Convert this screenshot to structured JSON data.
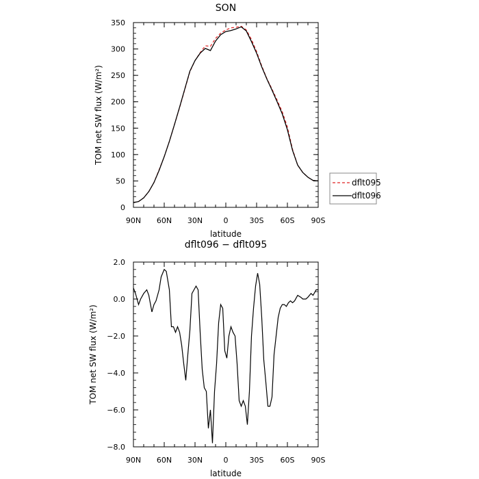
{
  "chart_data": [
    {
      "type": "line",
      "title": "SON",
      "xlabel": "latitude",
      "ylabel": "TOM net SW flux (W/m²)",
      "xlim": [
        90,
        -90
      ],
      "ylim": [
        0,
        350
      ],
      "xticks": [
        90,
        60,
        30,
        0,
        -30,
        -60,
        -90
      ],
      "xtick_labels": [
        "90N",
        "60N",
        "30N",
        "0",
        "30S",
        "60S",
        "90S"
      ],
      "yticks": [
        0,
        50,
        100,
        150,
        200,
        250,
        300,
        350
      ],
      "ytick_labels": [
        "0",
        "50",
        "100",
        "150",
        "200",
        "250",
        "300",
        "350"
      ],
      "grid": false,
      "legend": "right",
      "x": [
        90,
        85,
        80,
        75,
        70,
        65,
        60,
        55,
        50,
        45,
        40,
        35,
        30,
        25,
        20,
        15,
        10,
        5,
        0,
        -5,
        -10,
        -15,
        -20,
        -25,
        -30,
        -35,
        -40,
        -45,
        -50,
        -55,
        -60,
        -65,
        -70,
        -75,
        -80,
        -85,
        -90
      ],
      "series": [
        {
          "name": "dflt095",
          "color": "#e02020",
          "dash": "dashed",
          "values": [
            9,
            11,
            18,
            30,
            47,
            71,
            96,
            125,
            157,
            189,
            223,
            257,
            278,
            293,
            306,
            305,
            320,
            330,
            336,
            340,
            341,
            343,
            336,
            318,
            295,
            268,
            244,
            224,
            203,
            181,
            152,
            110,
            80,
            66,
            57,
            51,
            50
          ]
        },
        {
          "name": "dflt096",
          "color": "#000000",
          "dash": "solid",
          "values": [
            9,
            11,
            18,
            30,
            47,
            70,
            96,
            125,
            157,
            190,
            224,
            258,
            278,
            292,
            301,
            297,
            315,
            327,
            333,
            335,
            338,
            342,
            334,
            314,
            292,
            266,
            243,
            222,
            200,
            177,
            147,
            108,
            80,
            66,
            57,
            51,
            50
          ]
        }
      ]
    },
    {
      "type": "line",
      "title": "dflt096 − dflt095",
      "xlabel": "latitude",
      "ylabel": "TOM net SW flux (W/m²)",
      "xlim": [
        90,
        -90
      ],
      "ylim": [
        -8,
        2
      ],
      "xticks": [
        90,
        60,
        30,
        0,
        -30,
        -60,
        -90
      ],
      "xtick_labels": [
        "90N",
        "60N",
        "30N",
        "0",
        "30S",
        "60S",
        "90S"
      ],
      "yticks": [
        -8,
        -6,
        -4,
        -2,
        0,
        2
      ],
      "ytick_labels": [
        "−8.0",
        "−6.0",
        "−4.0",
        "−2.0",
        "0.0",
        "2.0"
      ],
      "grid": false,
      "x": [
        90,
        88,
        85,
        83,
        80,
        77,
        75,
        72,
        70,
        68,
        65,
        63,
        60,
        58,
        55,
        53,
        51,
        49,
        47,
        45,
        43,
        41,
        39,
        37,
        35,
        33,
        31,
        29,
        27,
        25,
        23,
        21,
        19,
        17,
        15,
        13,
        11,
        9,
        7,
        5,
        3,
        1,
        -1,
        -3,
        -5,
        -7,
        -9,
        -11,
        -13,
        -15,
        -17,
        -19,
        -21,
        -23,
        -25,
        -27,
        -29,
        -31,
        -33,
        -35,
        -37,
        -39,
        -41,
        -43,
        -45,
        -47,
        -49,
        -51,
        -53,
        -55,
        -57,
        -59,
        -61,
        -63,
        -65,
        -67,
        -70,
        -73,
        -75,
        -78,
        -80,
        -83,
        -85,
        -88,
        -90
      ],
      "values": [
        0.6,
        0.3,
        -0.3,
        0.0,
        0.3,
        0.5,
        0.2,
        -0.7,
        -0.3,
        -0.1,
        0.5,
        1.2,
        1.6,
        1.5,
        0.5,
        -1.5,
        -1.5,
        -1.8,
        -1.5,
        -1.8,
        -2.5,
        -3.5,
        -4.4,
        -3.0,
        -1.7,
        0.3,
        0.5,
        0.7,
        0.5,
        -1.8,
        -3.8,
        -4.8,
        -5.0,
        -7.0,
        -6.0,
        -7.8,
        -5.0,
        -3.5,
        -1.3,
        -0.3,
        -0.5,
        -2.8,
        -3.2,
        -2.0,
        -1.5,
        -1.8,
        -2.0,
        -3.5,
        -5.5,
        -5.8,
        -5.5,
        -5.8,
        -6.8,
        -5.0,
        -2.0,
        -0.5,
        0.7,
        1.4,
        0.8,
        -1.0,
        -3.3,
        -4.5,
        -5.8,
        -5.8,
        -5.3,
        -3.0,
        -2.0,
        -1.0,
        -0.5,
        -0.3,
        -0.3,
        -0.4,
        -0.2,
        -0.1,
        -0.2,
        -0.1,
        0.2,
        0.1,
        0.0,
        0.0,
        0.1,
        0.3,
        0.2,
        0.5,
        0.5
      ]
    }
  ]
}
